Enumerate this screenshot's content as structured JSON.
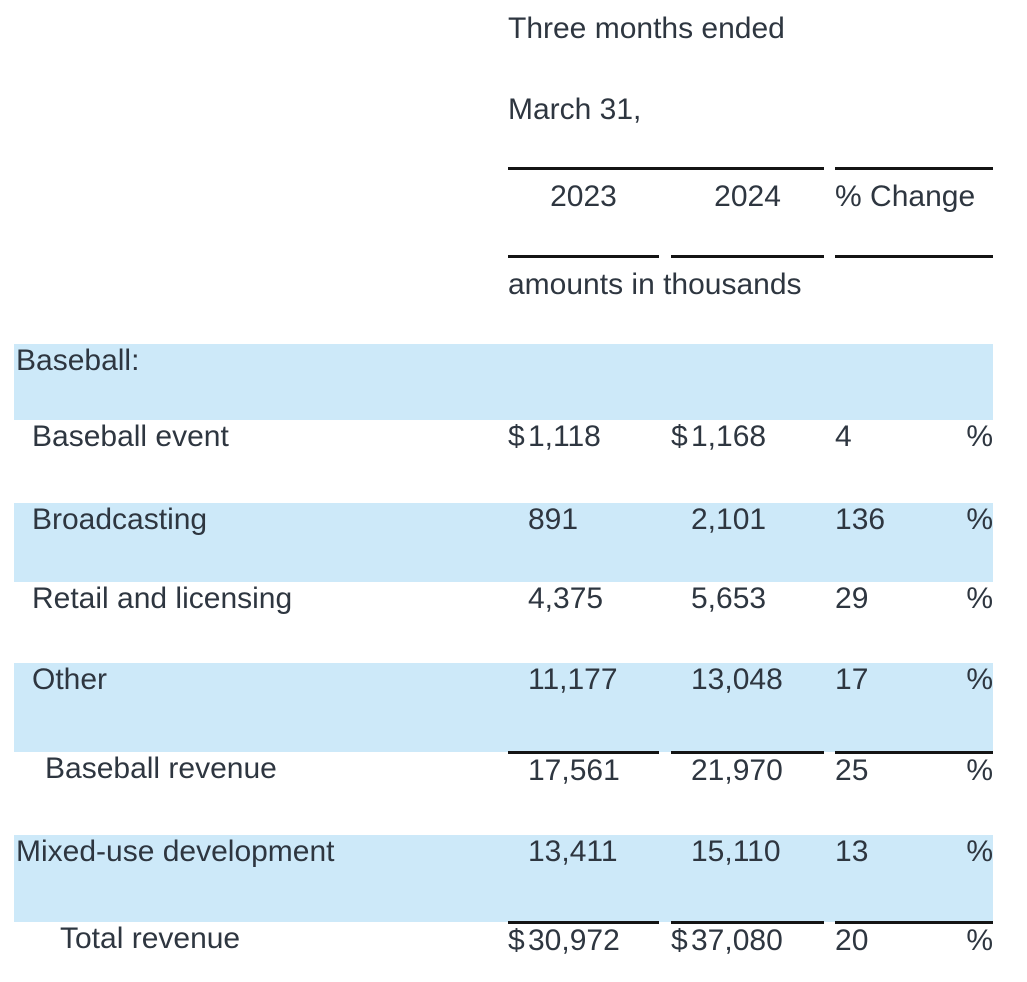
{
  "header": {
    "period_line1": "Three months ended",
    "period_line2": "March 31,",
    "col_2023": "2023",
    "col_2024": "2024",
    "col_change": "% Change",
    "units_note": "amounts in thousands"
  },
  "rows": [
    {
      "label": "Baseball:",
      "indent": 0,
      "shaded": true,
      "total_rule": false,
      "cur2023": "",
      "v2023": "",
      "cur2024": "",
      "v2024": "",
      "change": "",
      "pct": ""
    },
    {
      "label": "Baseball event",
      "indent": 1,
      "shaded": false,
      "total_rule": false,
      "cur2023": "$",
      "v2023": "1,118",
      "cur2024": "$",
      "v2024": "1,168",
      "change": "4",
      "pct": "%"
    },
    {
      "label": "Broadcasting",
      "indent": 1,
      "shaded": true,
      "total_rule": false,
      "cur2023": "",
      "v2023": "891",
      "cur2024": "",
      "v2024": "2,101",
      "change": "136",
      "pct": "%"
    },
    {
      "label": "Retail and licensing",
      "indent": 1,
      "shaded": false,
      "total_rule": false,
      "cur2023": "",
      "v2023": "4,375",
      "cur2024": "",
      "v2024": "5,653",
      "change": "29",
      "pct": "%"
    },
    {
      "label": "Other",
      "indent": 1,
      "shaded": true,
      "total_rule": false,
      "cur2023": "",
      "v2023": "11,177",
      "cur2024": "",
      "v2024": "13,048",
      "change": "17",
      "pct": "%"
    },
    {
      "label": "Baseball revenue",
      "indent": 2,
      "shaded": false,
      "total_rule": true,
      "cur2023": "",
      "v2023": "17,561",
      "cur2024": "",
      "v2024": "21,970",
      "change": "25",
      "pct": "%"
    },
    {
      "label": "Mixed-use development",
      "indent": 0,
      "shaded": true,
      "total_rule": false,
      "cur2023": "",
      "v2023": "13,411",
      "cur2024": "",
      "v2024": "15,110",
      "change": "13",
      "pct": "%"
    },
    {
      "label": "Total revenue",
      "indent": 3,
      "shaded": false,
      "total_rule": true,
      "cur2023": "$",
      "v2023": "30,972",
      "cur2024": "$",
      "v2024": "37,080",
      "change": "20",
      "pct": "%"
    }
  ],
  "colors": {
    "row_shaded": "#cde9f9",
    "text": "#2e3640",
    "rule": "#141414",
    "background": "#ffffff"
  }
}
